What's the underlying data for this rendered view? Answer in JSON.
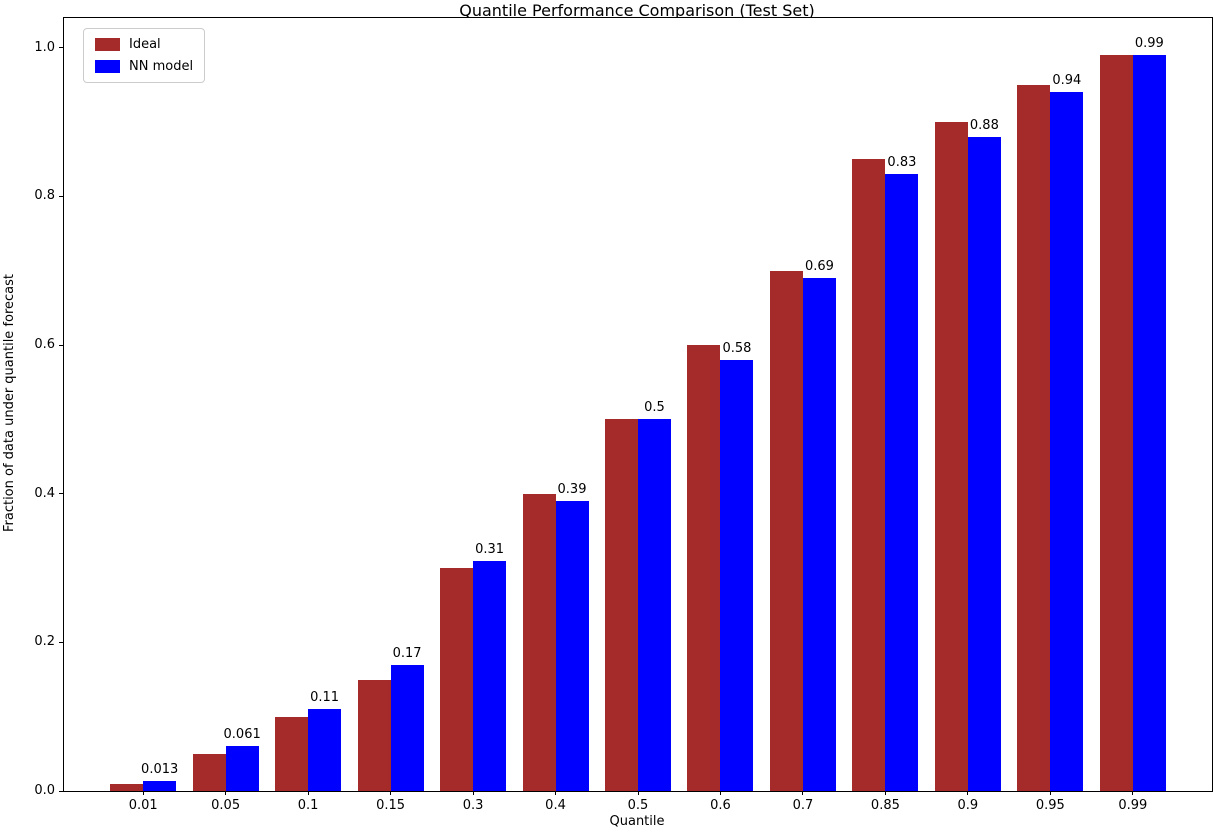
{
  "chart_data": {
    "type": "bar",
    "title": "Quantile Performance Comparison (Test Set)",
    "xlabel": "Quantile",
    "ylabel": "Fraction of data under quantile forecast",
    "categories": [
      "0.01",
      "0.05",
      "0.1",
      "0.15",
      "0.3",
      "0.4",
      "0.5",
      "0.6",
      "0.7",
      "0.85",
      "0.9",
      "0.95",
      "0.99"
    ],
    "series": [
      {
        "name": "Ideal",
        "color": "#A52A2A",
        "values": [
          0.01,
          0.05,
          0.1,
          0.15,
          0.3,
          0.4,
          0.5,
          0.6,
          0.7,
          0.85,
          0.9,
          0.95,
          0.99
        ]
      },
      {
        "name": "NN model",
        "color": "#0000FF",
        "values": [
          0.013,
          0.061,
          0.11,
          0.17,
          0.31,
          0.39,
          0.5,
          0.58,
          0.69,
          0.83,
          0.88,
          0.94,
          0.99
        ],
        "bar_labels": [
          "0.013",
          "0.061",
          "0.11",
          "0.17",
          "0.31",
          "0.39",
          "0.5",
          "0.58",
          "0.69",
          "0.83",
          "0.88",
          "0.94",
          "0.99"
        ]
      }
    ],
    "yticks": [
      0.0,
      0.2,
      0.4,
      0.6,
      0.8,
      1.0
    ],
    "ytick_labels": [
      "0.0",
      "0.2",
      "0.4",
      "0.6",
      "0.8",
      "1.0"
    ],
    "ylim": [
      0,
      1.04
    ],
    "grid": false,
    "legend_position": "upper left",
    "bar_group_width": 0.8
  }
}
